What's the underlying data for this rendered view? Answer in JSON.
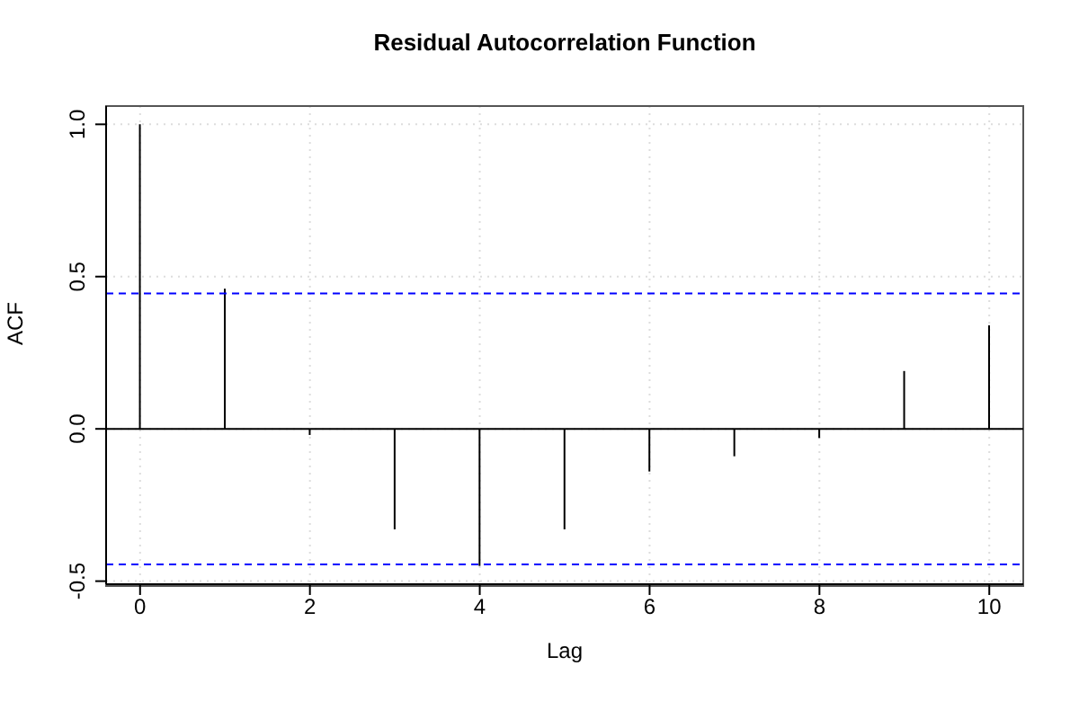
{
  "chart_data": {
    "type": "bar",
    "title": "Residual Autocorrelation Function",
    "xlabel": "Lag",
    "ylabel": "ACF",
    "x": [
      0,
      1,
      2,
      3,
      4,
      5,
      6,
      7,
      8,
      9,
      10
    ],
    "values": [
      1,
      0.46,
      -0.02,
      -0.33,
      -0.45,
      -0.33,
      -0.14,
      -0.09,
      -0.03,
      0.19,
      0.34
    ],
    "color": "#000000",
    "xlim": [
      -0.4,
      10.4
    ],
    "xticks": [
      0,
      2,
      4,
      6,
      8,
      10
    ],
    "ylim": [
      -0.51,
      1.06
    ],
    "yticks": [
      {
        "value": -0.5,
        "label": "-0.5"
      },
      {
        "value": 0,
        "label": "0.0"
      },
      {
        "value": 0.5,
        "label": "0.5"
      },
      {
        "value": 1,
        "label": "1.0"
      }
    ],
    "grid": true,
    "ref_lines": [
      {
        "axis": "y",
        "value": 0,
        "color": "#000000",
        "line_style": "solid"
      },
      {
        "axis": "y",
        "value": 0.445,
        "color": "#0000ff",
        "line_style": "dashed"
      },
      {
        "axis": "y",
        "value": -0.445,
        "color": "#0000ff",
        "line_style": "dashed"
      }
    ]
  }
}
